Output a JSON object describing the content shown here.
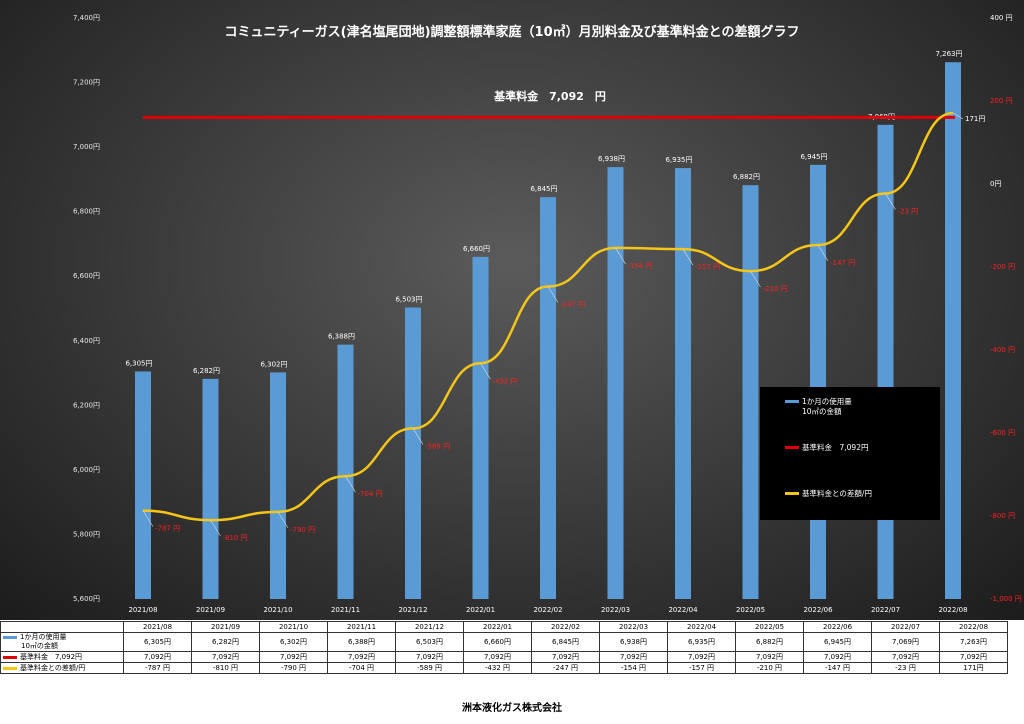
{
  "chart_data": {
    "type": "bar",
    "title": "コミュニティーガス(津名塩尾団地)調整額標準家庭（10㎥）月別料金及び基準料金との差額グラフ",
    "categories": [
      "2021/08",
      "2021/09",
      "2021/10",
      "2021/11",
      "2021/12",
      "2022/01",
      "2022/02",
      "2022/03",
      "2022/04",
      "2022/05",
      "2022/06",
      "2022/07",
      "2022/08"
    ],
    "left_axis": {
      "ylim": [
        5600,
        7400
      ],
      "ticks": [
        "5,600円",
        "5,800円",
        "6,000円",
        "6,200円",
        "6,400円",
        "6,600円",
        "6,800円",
        "7,000円",
        "7,200円",
        "7,400円"
      ]
    },
    "right_axis": {
      "ylim": [
        -1000,
        400
      ],
      "ticks": [
        "-1,000 円",
        "-800 円",
        "-600 円",
        "-400 円",
        "-200 円",
        "0円",
        "200 円",
        "400 円"
      ]
    },
    "series": [
      {
        "name": "1か月の使用量\n10㎥の金額",
        "kind": "bar",
        "color": "#5b9bd5",
        "values": [
          6305,
          6282,
          6302,
          6388,
          6503,
          6660,
          6845,
          6938,
          6935,
          6882,
          6945,
          7069,
          7263
        ],
        "labels": [
          "6,305円",
          "6,282円",
          "6,302円",
          "6,388円",
          "6,503円",
          "6,660円",
          "6,845円",
          "6,938円",
          "6,935円",
          "6,882円",
          "6,945円",
          "7,069円",
          "7,263円"
        ]
      },
      {
        "name": "基準料金　7,092円",
        "kind": "line",
        "color": "#e00000",
        "value": 7092
      },
      {
        "name": "基準料金との差額/円",
        "kind": "line",
        "color": "#f5c518",
        "values": [
          -787,
          -810,
          -790,
          -704,
          -589,
          -432,
          -247,
          -154,
          -157,
          -210,
          -147,
          -23,
          171
        ],
        "labels": [
          "-787 円",
          "-810 円",
          "-790 円",
          "-704 円",
          "-589 円",
          "-432 円",
          "-247 円",
          "-154 円",
          "-157 円",
          "-210 円",
          "-147 円",
          "-23 円",
          "171円"
        ]
      }
    ],
    "annotation": "基準料金　7,092　円"
  },
  "legend": {
    "bar": [
      "1か月の使用量",
      "10㎥の金額"
    ],
    "base": "基準料金　7,092円",
    "diff": "基準料金との差額/円"
  },
  "table": {
    "row_bar": [
      "1か月の使用量",
      "10㎥の金額"
    ],
    "row_bar_values": [
      "6,305円",
      "6,282円",
      "6,302円",
      "6,388円",
      "6,503円",
      "6,660円",
      "6,845円",
      "6,938円",
      "6,935円",
      "6,882円",
      "6,945円",
      "7,069円",
      "7,263円"
    ],
    "row_base": "基準料金　7,092円",
    "row_base_values": [
      "7,092円",
      "7,092円",
      "7,092円",
      "7,092円",
      "7,092円",
      "7,092円",
      "7,092円",
      "7,092円",
      "7,092円",
      "7,092円",
      "7,092円",
      "7,092円",
      "7,092円"
    ],
    "row_diff": "基準料金との差額/円",
    "row_diff_values": [
      "-787 円",
      "-810 円",
      "-790 円",
      "-704 円",
      "-589 円",
      "-432 円",
      "-247 円",
      "-154 円",
      "-157 円",
      "-210 円",
      "-147 円",
      "-23 円",
      "171円"
    ]
  },
  "footer": "洲本液化ガス株式会社",
  "colors": {
    "bar": "#5b9bd5",
    "base": "#e00000",
    "diff": "#f5c518"
  }
}
